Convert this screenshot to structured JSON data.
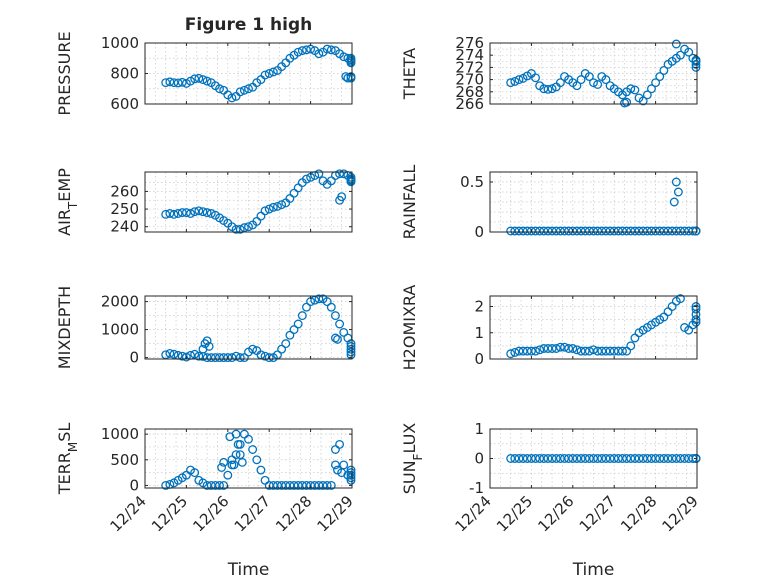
{
  "chart_data": [
    {
      "type": "scatter",
      "title": "Figure 1 high",
      "ylabel": "PRESSURE",
      "xlabel": "",
      "ylim": [
        600,
        1000
      ],
      "yticks": [
        600,
        800,
        1000
      ],
      "yminor": [
        700,
        900
      ],
      "xticks": [
        "12/24",
        "12/25",
        "12/26",
        "12/27",
        "12/28",
        "12/29"
      ],
      "show_xticks": false,
      "x": [
        0.5,
        0.6,
        0.7,
        0.8,
        0.9,
        1.0,
        1.1,
        1.2,
        1.3,
        1.4,
        1.5,
        1.6,
        1.7,
        1.8,
        1.9,
        2.0,
        2.1,
        2.2,
        2.3,
        2.4,
        2.5,
        2.6,
        2.7,
        2.8,
        2.9,
        3.0,
        3.1,
        3.2,
        3.3,
        3.4,
        3.5,
        3.6,
        3.7,
        3.8,
        3.9,
        4.0,
        4.1,
        4.2,
        4.3,
        4.4,
        4.5,
        4.6,
        4.7,
        4.8,
        4.9,
        5.0,
        5.1,
        5.2,
        5.3,
        5.4,
        5.5,
        4.85,
        4.9
      ],
      "values": [
        740,
        745,
        740,
        738,
        742,
        735,
        750,
        765,
        768,
        760,
        750,
        740,
        720,
        700,
        690,
        660,
        640,
        650,
        680,
        690,
        700,
        710,
        740,
        760,
        790,
        800,
        810,
        820,
        845,
        870,
        900,
        920,
        940,
        950,
        955,
        960,
        950,
        930,
        940,
        960,
        955,
        950,
        930,
        910,
        900,
        780,
        770,
        890,
        900,
        880,
        870,
        780,
        770
      ]
    },
    {
      "type": "scatter",
      "title": "",
      "ylabel": "THETA",
      "xlabel": "",
      "ylim": [
        266,
        276
      ],
      "yticks": [
        266,
        268,
        270,
        272,
        274,
        276
      ],
      "yminor": [
        267,
        269,
        271,
        273,
        275
      ],
      "xticks": [
        "12/24",
        "12/25",
        "12/26",
        "12/27",
        "12/28",
        "12/29"
      ],
      "show_xticks": false,
      "x": [
        0.5,
        0.6,
        0.7,
        0.8,
        0.9,
        1.0,
        1.1,
        1.2,
        1.3,
        1.4,
        1.5,
        1.6,
        1.7,
        1.8,
        1.9,
        2.0,
        2.1,
        2.2,
        2.3,
        2.4,
        2.5,
        2.6,
        2.7,
        2.8,
        2.9,
        3.0,
        3.1,
        3.2,
        3.3,
        3.4,
        3.5,
        3.6,
        3.7,
        3.8,
        3.9,
        4.0,
        4.1,
        4.2,
        4.3,
        4.4,
        4.5,
        4.6,
        4.7,
        4.8,
        4.9,
        5.0,
        5.1,
        5.2,
        5.3,
        5.4,
        3.25,
        3.3,
        4.5
      ],
      "values": [
        269.5,
        269.7,
        270.0,
        270.2,
        270.6,
        271.0,
        270.3,
        269.0,
        268.5,
        268.4,
        268.5,
        268.8,
        269.5,
        270.5,
        270.0,
        269.5,
        269.0,
        270.0,
        271.0,
        270.5,
        269.5,
        269.2,
        270.5,
        270.0,
        269.0,
        268.5,
        268.0,
        267.5,
        268.0,
        268.5,
        268.3,
        267.0,
        266.5,
        267.5,
        268.5,
        269.5,
        270.5,
        271.5,
        272.5,
        273.0,
        273.5,
        274.0,
        275.0,
        274.5,
        273.5,
        273.0,
        273.2,
        273.0,
        272.5,
        272.0,
        266.0,
        266.3,
        276.0
      ]
    },
    {
      "type": "scatter",
      "title": "",
      "ylabel": "AIR_TEMP",
      "xlabel": "",
      "ylim": [
        237,
        271
      ],
      "yticks": [
        240,
        250,
        260
      ],
      "yminor": [
        245,
        255,
        265
      ],
      "xticks": [
        "12/24",
        "12/25",
        "12/26",
        "12/27",
        "12/28",
        "12/29"
      ],
      "show_xticks": false,
      "x": [
        0.5,
        0.6,
        0.7,
        0.8,
        0.9,
        1.0,
        1.1,
        1.2,
        1.3,
        1.4,
        1.5,
        1.6,
        1.7,
        1.8,
        1.9,
        2.0,
        2.1,
        2.2,
        2.3,
        2.4,
        2.5,
        2.6,
        2.7,
        2.8,
        2.9,
        3.0,
        3.1,
        3.2,
        3.3,
        3.4,
        3.5,
        3.6,
        3.7,
        3.8,
        3.9,
        4.0,
        4.1,
        4.2,
        4.3,
        4.4,
        4.5,
        4.6,
        4.7,
        4.8,
        4.9,
        5.0,
        5.1,
        5.2,
        5.3,
        5.4,
        4.7,
        4.75
      ],
      "values": [
        247.0,
        247.5,
        247.0,
        247.5,
        248.0,
        248.0,
        247.5,
        248.5,
        249.0,
        248.5,
        248.0,
        247.5,
        246.5,
        245.0,
        243.5,
        242.0,
        240.0,
        238.5,
        238.5,
        239.5,
        240.0,
        241.0,
        243.0,
        246.0,
        249.0,
        250.0,
        251.0,
        251.5,
        252.5,
        253.5,
        256.0,
        259.0,
        262.0,
        265.0,
        267.0,
        268.0,
        269.0,
        270.0,
        266.0,
        264.0,
        266.0,
        269.0,
        270.0,
        270.0,
        269.0,
        268.0,
        267.0,
        266.5,
        266.0,
        265.5,
        255.0,
        257.0
      ]
    },
    {
      "type": "scatter",
      "title": "",
      "ylabel": "RAINFALL",
      "xlabel": "",
      "ylim": [
        0,
        0.6
      ],
      "yticks": [
        0,
        0.5
      ],
      "yminor": [
        0.1,
        0.2,
        0.3,
        0.4
      ],
      "xticks": [
        "12/24",
        "12/25",
        "12/26",
        "12/27",
        "12/28",
        "12/29"
      ],
      "show_xticks": false,
      "x": [
        0.5,
        0.6,
        0.7,
        0.8,
        0.9,
        1.0,
        1.1,
        1.2,
        1.3,
        1.4,
        1.5,
        1.6,
        1.7,
        1.8,
        1.9,
        2.0,
        2.1,
        2.2,
        2.3,
        2.4,
        2.5,
        2.6,
        2.7,
        2.8,
        2.9,
        3.0,
        3.1,
        3.2,
        3.3,
        3.4,
        3.5,
        3.6,
        3.7,
        3.8,
        3.9,
        4.0,
        4.1,
        4.2,
        4.3,
        4.4,
        4.5,
        4.6,
        4.7,
        4.8,
        4.9,
        5.0,
        5.1,
        5.2,
        5.3,
        5.4,
        4.45,
        4.5,
        4.55
      ],
      "values": [
        0,
        0,
        0,
        0,
        0,
        0,
        0,
        0,
        0,
        0,
        0,
        0,
        0,
        0,
        0,
        0,
        0,
        0,
        0,
        0,
        0,
        0,
        0,
        0,
        0,
        0,
        0,
        0,
        0,
        0,
        0,
        0,
        0,
        0,
        0,
        0,
        0,
        0,
        0,
        0,
        0,
        0,
        0,
        0,
        0,
        0,
        0,
        0,
        0,
        0,
        0.3,
        0.5,
        0.4
      ]
    },
    {
      "type": "scatter",
      "title": "",
      "ylabel": "MIXDEPTH",
      "xlabel": "",
      "ylim": [
        -50,
        2200
      ],
      "yticks": [
        0,
        1000,
        2000
      ],
      "yminor": [
        500,
        1500
      ],
      "xticks": [
        "12/24",
        "12/25",
        "12/26",
        "12/27",
        "12/28",
        "12/29"
      ],
      "show_xticks": false,
      "x": [
        0.5,
        0.6,
        0.7,
        0.8,
        0.9,
        1.0,
        1.1,
        1.2,
        1.3,
        1.4,
        1.5,
        1.6,
        1.7,
        1.8,
        1.9,
        2.0,
        2.1,
        2.2,
        2.3,
        2.4,
        2.5,
        2.6,
        2.7,
        2.8,
        2.9,
        3.0,
        3.1,
        3.2,
        3.3,
        3.4,
        3.5,
        3.6,
        3.7,
        3.8,
        3.9,
        4.0,
        4.1,
        4.2,
        4.3,
        4.4,
        4.5,
        4.6,
        4.7,
        4.8,
        4.9,
        5.0,
        5.1,
        5.2,
        5.3,
        5.4,
        1.4,
        1.45,
        1.5,
        1.55,
        4.6,
        4.65
      ],
      "values": [
        100,
        150,
        120,
        80,
        50,
        20,
        80,
        120,
        50,
        40,
        0,
        0,
        0,
        0,
        0,
        0,
        0,
        50,
        0,
        0,
        200,
        300,
        250,
        100,
        50,
        0,
        0,
        100,
        300,
        500,
        800,
        1000,
        1200,
        1500,
        1800,
        2000,
        2050,
        2100,
        2100,
        2000,
        1800,
        1500,
        1200,
        900,
        700,
        100,
        200,
        300,
        400,
        500,
        300,
        500,
        600,
        400,
        700,
        650
      ]
    },
    {
      "type": "scatter",
      "title": "",
      "ylabel": "H2OMIXRA",
      "xlabel": "",
      "ylim": [
        0,
        2.4
      ],
      "yticks": [
        0,
        1,
        2
      ],
      "yminor": [
        0.5,
        1.5
      ],
      "xticks": [
        "12/24",
        "12/25",
        "12/26",
        "12/27",
        "12/28",
        "12/29"
      ],
      "show_xticks": false,
      "x": [
        0.5,
        0.6,
        0.7,
        0.8,
        0.9,
        1.0,
        1.1,
        1.2,
        1.3,
        1.4,
        1.5,
        1.6,
        1.7,
        1.8,
        1.9,
        2.0,
        2.1,
        2.2,
        2.3,
        2.4,
        2.5,
        2.6,
        2.7,
        2.8,
        2.9,
        3.0,
        3.1,
        3.2,
        3.3,
        3.4,
        3.5,
        3.6,
        3.7,
        3.8,
        3.9,
        4.0,
        4.1,
        4.2,
        4.3,
        4.4,
        4.5,
        4.6,
        4.7,
        4.8,
        4.9,
        5.0,
        5.1,
        5.2,
        5.3,
        5.4
      ],
      "values": [
        0.2,
        0.25,
        0.3,
        0.3,
        0.3,
        0.3,
        0.3,
        0.35,
        0.4,
        0.4,
        0.4,
        0.4,
        0.45,
        0.45,
        0.4,
        0.4,
        0.35,
        0.3,
        0.3,
        0.3,
        0.35,
        0.3,
        0.3,
        0.3,
        0.3,
        0.3,
        0.3,
        0.3,
        0.3,
        0.5,
        0.8,
        1.0,
        1.1,
        1.2,
        1.3,
        1.4,
        1.5,
        1.6,
        1.8,
        2.0,
        2.2,
        2.3,
        1.2,
        1.1,
        1.3,
        1.4,
        1.5,
        1.7,
        1.9,
        2.0
      ]
    },
    {
      "type": "scatter",
      "title": "",
      "ylabel": "TERR_MSL",
      "xlabel": "Time",
      "ylim": [
        -50,
        1100
      ],
      "yticks": [
        0,
        500,
        1000
      ],
      "yminor": [
        250,
        750
      ],
      "xticks": [
        "12/24",
        "12/25",
        "12/26",
        "12/27",
        "12/28",
        "12/29"
      ],
      "show_xticks": true,
      "x": [
        0.5,
        0.6,
        0.7,
        0.8,
        0.9,
        1.0,
        1.1,
        1.2,
        1.3,
        1.4,
        1.5,
        1.6,
        1.7,
        1.8,
        1.9,
        2.0,
        2.1,
        2.2,
        2.3,
        2.4,
        2.5,
        2.6,
        2.7,
        2.8,
        2.9,
        3.0,
        3.1,
        3.2,
        3.3,
        3.4,
        3.5,
        3.6,
        3.7,
        3.8,
        3.9,
        4.0,
        4.1,
        4.2,
        4.3,
        4.4,
        4.5,
        4.6,
        4.7,
        4.8,
        4.9,
        5.0,
        5.1,
        5.2,
        5.3,
        5.4,
        1.85,
        1.9,
        2.05,
        2.1,
        2.15,
        2.2,
        2.25,
        2.3,
        2.35,
        4.6,
        4.65,
        4.75
      ],
      "values": [
        0,
        20,
        50,
        100,
        150,
        200,
        300,
        250,
        100,
        50,
        0,
        0,
        0,
        0,
        0,
        200,
        400,
        600,
        800,
        1000,
        900,
        700,
        500,
        300,
        100,
        0,
        0,
        0,
        0,
        0,
        0,
        0,
        0,
        0,
        0,
        0,
        0,
        0,
        0,
        0,
        0,
        700,
        800,
        400,
        200,
        100,
        150,
        200,
        250,
        300,
        350,
        450,
        950,
        500,
        400,
        1000,
        800,
        600,
        450,
        400,
        300,
        250
      ]
    },
    {
      "type": "scatter",
      "title": "",
      "ylabel": "SUN_FLUX",
      "xlabel": "Time",
      "ylim": [
        -1,
        1
      ],
      "yticks": [
        -1,
        0,
        1
      ],
      "yminor": [
        -0.5,
        0.5
      ],
      "xticks": [
        "12/24",
        "12/25",
        "12/26",
        "12/27",
        "12/28",
        "12/29"
      ],
      "show_xticks": true,
      "x": [
        0.5,
        0.6,
        0.7,
        0.8,
        0.9,
        1.0,
        1.1,
        1.2,
        1.3,
        1.4,
        1.5,
        1.6,
        1.7,
        1.8,
        1.9,
        2.0,
        2.1,
        2.2,
        2.3,
        2.4,
        2.5,
        2.6,
        2.7,
        2.8,
        2.9,
        3.0,
        3.1,
        3.2,
        3.3,
        3.4,
        3.5,
        3.6,
        3.7,
        3.8,
        3.9,
        4.0,
        4.1,
        4.2,
        4.3,
        4.4,
        4.5,
        4.6,
        4.7,
        4.8,
        4.9,
        5.0,
        5.1,
        5.2,
        5.3,
        5.4
      ],
      "values": [
        0,
        0,
        0,
        0,
        0,
        0,
        0,
        0,
        0,
        0,
        0,
        0,
        0,
        0,
        0,
        0,
        0,
        0,
        0,
        0,
        0,
        0,
        0,
        0,
        0,
        0,
        0,
        0,
        0,
        0,
        0,
        0,
        0,
        0,
        0,
        0,
        0,
        0,
        0,
        0,
        0,
        0,
        0,
        0,
        0,
        0,
        0,
        0,
        0,
        0
      ]
    }
  ]
}
